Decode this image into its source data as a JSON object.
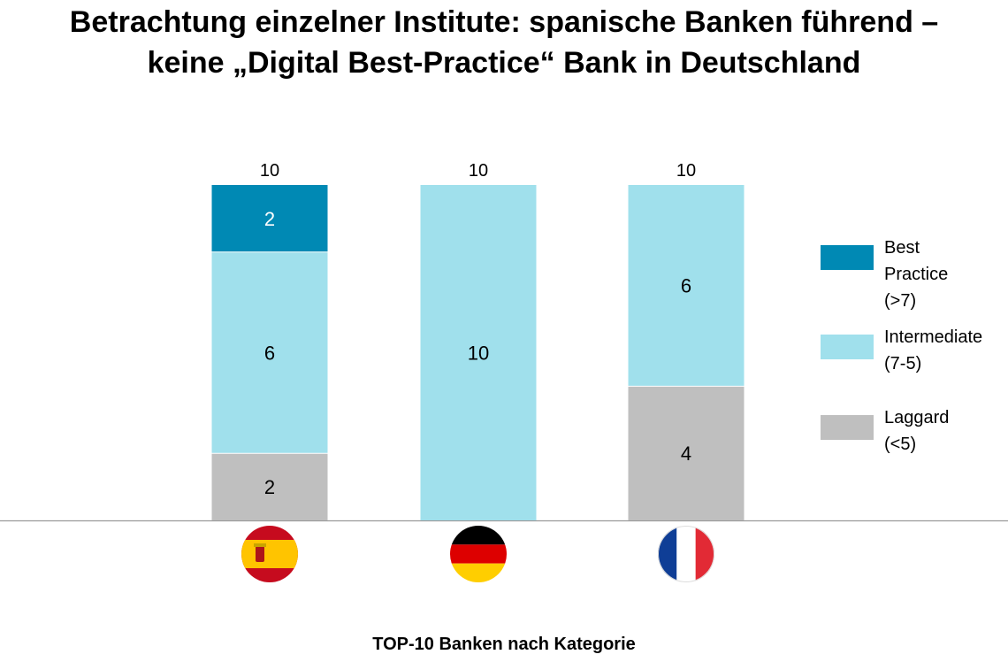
{
  "title": {
    "line1": "Betrachtung einzelner Institute: spanische Banken führend –",
    "line2": "keine „Digital Best-Practice“ Bank in Deutschland"
  },
  "chart_data": {
    "type": "bar",
    "stacked": true,
    "categories": [
      "Spanien",
      "Deutschland",
      "Frankreich"
    ],
    "category_icons": [
      "spain-flag-icon",
      "germany-flag-icon",
      "france-flag-icon"
    ],
    "series": [
      {
        "name": "Laggard\n(<5)",
        "color": "#bfbfbf",
        "values": [
          2,
          0,
          4
        ]
      },
      {
        "name": "Intermediate\n(7-5)",
        "color": "#a0e0ec",
        "values": [
          6,
          10,
          6
        ]
      },
      {
        "name": "Best Practice\n(>7)",
        "color": "#0089b4",
        "values": [
          2,
          0,
          0
        ]
      }
    ],
    "totals": [
      10,
      10,
      10
    ],
    "ylim": [
      0,
      10
    ],
    "xlabel": "TOP-10 Banken nach Kategorie",
    "legend_position": "right",
    "grid": false
  }
}
